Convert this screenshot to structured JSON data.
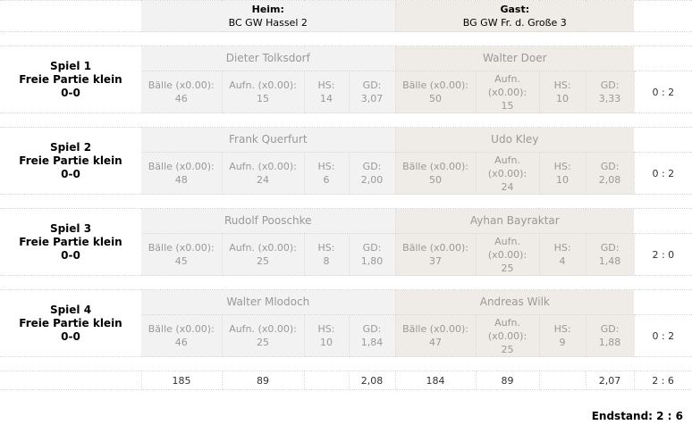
{
  "header": {
    "home_label": "Heim:",
    "home_team": "BC GW Hassel 2",
    "guest_label": "Gast:",
    "guest_team": "BG GW Fr. d. Große 3"
  },
  "labels": {
    "balls": "Bälle (x0.00):",
    "innings": "Aufn. (x0.00):",
    "hs": "HS:",
    "gd": "GD:"
  },
  "games": [
    {
      "title": "Spiel 1",
      "discipline": "Freie Partie klein",
      "score": "0-0",
      "home": {
        "player": "Dieter Tolksdorf",
        "balls": "46",
        "innings": "15",
        "hs": "14",
        "gd": "3,07"
      },
      "guest": {
        "player": "Walter Doer",
        "balls": "50",
        "innings": "15",
        "hs": "10",
        "gd": "3,33"
      },
      "result": "0 : 2"
    },
    {
      "title": "Spiel 2",
      "discipline": "Freie Partie klein",
      "score": "0-0",
      "home": {
        "player": "Frank Querfurt",
        "balls": "48",
        "innings": "24",
        "hs": "6",
        "gd": "2,00"
      },
      "guest": {
        "player": "Udo Kley",
        "balls": "50",
        "innings": "24",
        "hs": "10",
        "gd": "2,08"
      },
      "result": "0 : 2"
    },
    {
      "title": "Spiel 3",
      "discipline": "Freie Partie klein",
      "score": "0-0",
      "home": {
        "player": "Rudolf Pooschke",
        "balls": "45",
        "innings": "25",
        "hs": "8",
        "gd": "1,80"
      },
      "guest": {
        "player": "Ayhan Bayraktar",
        "balls": "37",
        "innings": "25",
        "hs": "4",
        "gd": "1,48"
      },
      "result": "2 : 0"
    },
    {
      "title": "Spiel 4",
      "discipline": "Freie Partie klein",
      "score": "0-0",
      "home": {
        "player": "Walter Mlodoch",
        "balls": "46",
        "innings": "25",
        "hs": "10",
        "gd": "1,84"
      },
      "guest": {
        "player": "Andreas Wilk",
        "balls": "47",
        "innings": "25",
        "hs": "9",
        "gd": "1,88"
      },
      "result": "0 : 2"
    }
  ],
  "totals": {
    "home_balls": "185",
    "home_innings": "89",
    "home_gd": "2,08",
    "guest_balls": "184",
    "guest_innings": "89",
    "guest_gd": "2,07",
    "result": "2 : 6"
  },
  "final": "Endstand: 2 : 6"
}
